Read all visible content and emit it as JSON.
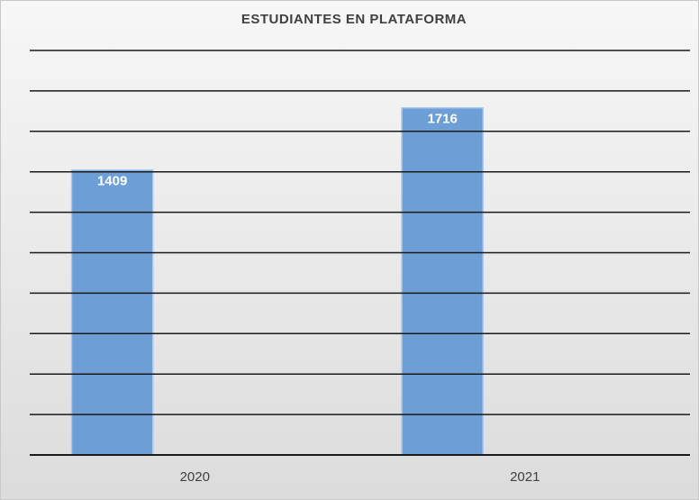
{
  "chart_data": {
    "type": "bar",
    "title": "ESTUDIANTES EN PLATAFORMA",
    "categories": [
      "2020",
      "2021"
    ],
    "values": [
      1409,
      1716
    ],
    "color": "#6d9fd6",
    "ylim": [
      0,
      2000
    ],
    "yticks": [
      0,
      200,
      400,
      600,
      800,
      1000,
      1200,
      1400,
      1600,
      1800,
      2000
    ],
    "grid": true
  }
}
